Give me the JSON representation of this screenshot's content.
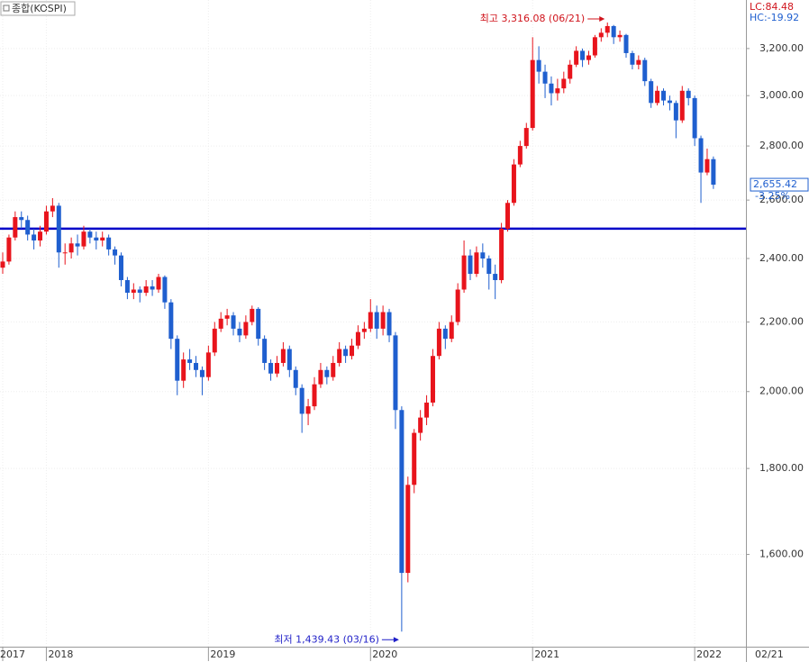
{
  "chart_data": {
    "type": "candlestick",
    "title": "종합(KOSPI)",
    "lc_label": "LC:84.48",
    "hc_label": "HC:-19.92",
    "high_note": "최고 3,316.08 (06/21)",
    "low_note": "최저 1,439.43 (03/16)",
    "last_label": "2,655.42",
    "change_label": "-3.25%",
    "x_end_label": "02/21",
    "log_scale": true,
    "grid": true,
    "up_color": "#e8141c",
    "down_color": "#1f5fcf",
    "hline": 2500,
    "hline_color": "#0000c8",
    "ylim": [
      1410,
      3420
    ],
    "yticks": [
      {
        "value": 1600,
        "label": "1,600.00"
      },
      {
        "value": 1800,
        "label": "1,800.00"
      },
      {
        "value": 2000,
        "label": "2,000.00"
      },
      {
        "value": 2200,
        "label": "2,200.00"
      },
      {
        "value": 2400,
        "label": "2,400.00"
      },
      {
        "value": 2600,
        "label": "2,600.00"
      },
      {
        "value": 2800,
        "label": "2,800.00"
      },
      {
        "value": 3000,
        "label": "3,000.00"
      },
      {
        "value": 3200,
        "label": "3,200.00"
      }
    ],
    "categories": [
      "2017",
      null,
      null,
      null,
      null,
      null,
      null,
      "2018",
      null,
      null,
      null,
      null,
      null,
      null,
      null,
      null,
      null,
      null,
      null,
      null,
      null,
      null,
      null,
      null,
      null,
      null,
      null,
      null,
      null,
      null,
      null,
      null,
      null,
      "2019",
      null,
      null,
      null,
      null,
      null,
      null,
      null,
      null,
      null,
      null,
      null,
      null,
      null,
      null,
      null,
      null,
      null,
      null,
      null,
      null,
      null,
      null,
      null,
      null,
      null,
      "2020",
      null,
      null,
      null,
      null,
      null,
      null,
      null,
      null,
      null,
      null,
      null,
      null,
      null,
      null,
      null,
      null,
      null,
      null,
      null,
      null,
      null,
      null,
      null,
      null,
      null,
      "2021",
      null,
      null,
      null,
      null,
      null,
      null,
      null,
      null,
      null,
      null,
      null,
      null,
      null,
      null,
      null,
      null,
      null,
      null,
      null,
      null,
      null,
      null,
      null,
      null,
      null,
      "2022",
      null,
      null,
      null
    ],
    "candles": [
      [
        2370,
        2420,
        2350,
        2390
      ],
      [
        2390,
        2480,
        2380,
        2470
      ],
      [
        2470,
        2560,
        2460,
        2540
      ],
      [
        2540,
        2560,
        2500,
        2530
      ],
      [
        2530,
        2545,
        2460,
        2480
      ],
      [
        2480,
        2500,
        2430,
        2460
      ],
      [
        2460,
        2510,
        2440,
        2490
      ],
      [
        2490,
        2580,
        2480,
        2560
      ],
      [
        2560,
        2607,
        2540,
        2580
      ],
      [
        2580,
        2590,
        2370,
        2420
      ],
      [
        2420,
        2450,
        2380,
        2420
      ],
      [
        2420,
        2470,
        2400,
        2450
      ],
      [
        2450,
        2480,
        2410,
        2440
      ],
      [
        2440,
        2510,
        2430,
        2490
      ],
      [
        2490,
        2500,
        2450,
        2470
      ],
      [
        2470,
        2490,
        2430,
        2460
      ],
      [
        2460,
        2490,
        2440,
        2470
      ],
      [
        2470,
        2480,
        2410,
        2430
      ],
      [
        2430,
        2440,
        2380,
        2410
      ],
      [
        2410,
        2420,
        2310,
        2330
      ],
      [
        2330,
        2340,
        2270,
        2290
      ],
      [
        2290,
        2320,
        2270,
        2300
      ],
      [
        2300,
        2310,
        2260,
        2290
      ],
      [
        2290,
        2330,
        2280,
        2310
      ],
      [
        2310,
        2330,
        2280,
        2300
      ],
      [
        2300,
        2350,
        2290,
        2340
      ],
      [
        2340,
        2345,
        2240,
        2260
      ],
      [
        2260,
        2270,
        2120,
        2150
      ],
      [
        2150,
        2160,
        1990,
        2030
      ],
      [
        2030,
        2110,
        2010,
        2090
      ],
      [
        2090,
        2120,
        2060,
        2080
      ],
      [
        2080,
        2100,
        2040,
        2060
      ],
      [
        2060,
        2070,
        1990,
        2040
      ],
      [
        2040,
        2130,
        2030,
        2110
      ],
      [
        2110,
        2200,
        2100,
        2180
      ],
      [
        2180,
        2230,
        2170,
        2210
      ],
      [
        2210,
        2240,
        2190,
        2220
      ],
      [
        2220,
        2230,
        2160,
        2180
      ],
      [
        2180,
        2200,
        2140,
        2160
      ],
      [
        2160,
        2220,
        2150,
        2200
      ],
      [
        2200,
        2250,
        2190,
        2240
      ],
      [
        2240,
        2245,
        2130,
        2150
      ],
      [
        2150,
        2160,
        2060,
        2080
      ],
      [
        2080,
        2090,
        2030,
        2050
      ],
      [
        2050,
        2100,
        2040,
        2080
      ],
      [
        2080,
        2140,
        2070,
        2120
      ],
      [
        2120,
        2130,
        2040,
        2060
      ],
      [
        2060,
        2070,
        1990,
        2010
      ],
      [
        2010,
        2020,
        1890,
        1940
      ],
      [
        1940,
        1980,
        1910,
        1960
      ],
      [
        1960,
        2040,
        1950,
        2020
      ],
      [
        2020,
        2080,
        2010,
        2060
      ],
      [
        2060,
        2070,
        2020,
        2040
      ],
      [
        2040,
        2100,
        2030,
        2080
      ],
      [
        2080,
        2140,
        2070,
        2120
      ],
      [
        2120,
        2130,
        2080,
        2100
      ],
      [
        2100,
        2150,
        2090,
        2130
      ],
      [
        2130,
        2190,
        2120,
        2170
      ],
      [
        2170,
        2200,
        2150,
        2180
      ],
      [
        2180,
        2270,
        2170,
        2230
      ],
      [
        2230,
        2250,
        2150,
        2180
      ],
      [
        2180,
        2250,
        2160,
        2230
      ],
      [
        2230,
        2240,
        2140,
        2160
      ],
      [
        2160,
        2170,
        1900,
        1950
      ],
      [
        1950,
        1960,
        1439.43,
        1560
      ],
      [
        1560,
        1780,
        1540,
        1760
      ],
      [
        1760,
        1900,
        1740,
        1890
      ],
      [
        1890,
        1950,
        1870,
        1930
      ],
      [
        1930,
        1990,
        1910,
        1970
      ],
      [
        1970,
        2120,
        1960,
        2100
      ],
      [
        2100,
        2200,
        2090,
        2180
      ],
      [
        2180,
        2190,
        2120,
        2150
      ],
      [
        2150,
        2220,
        2140,
        2200
      ],
      [
        2200,
        2320,
        2190,
        2300
      ],
      [
        2300,
        2460,
        2290,
        2410
      ],
      [
        2410,
        2430,
        2330,
        2350
      ],
      [
        2350,
        2440,
        2340,
        2420
      ],
      [
        2420,
        2450,
        2370,
        2400
      ],
      [
        2400,
        2410,
        2300,
        2350
      ],
      [
        2350,
        2380,
        2270,
        2330
      ],
      [
        2330,
        2520,
        2320,
        2500
      ],
      [
        2500,
        2600,
        2490,
        2590
      ],
      [
        2590,
        2750,
        2580,
        2730
      ],
      [
        2730,
        2820,
        2720,
        2800
      ],
      [
        2800,
        2890,
        2790,
        2870
      ],
      [
        2870,
        3250,
        2860,
        3150
      ],
      [
        3150,
        3210,
        3050,
        3100
      ],
      [
        3100,
        3130,
        2990,
        3050
      ],
      [
        3050,
        3080,
        2960,
        3010
      ],
      [
        3010,
        3070,
        2980,
        3030
      ],
      [
        3030,
        3100,
        3010,
        3070
      ],
      [
        3070,
        3150,
        3050,
        3130
      ],
      [
        3130,
        3210,
        3120,
        3190
      ],
      [
        3190,
        3200,
        3120,
        3150
      ],
      [
        3150,
        3190,
        3130,
        3170
      ],
      [
        3170,
        3260,
        3160,
        3250
      ],
      [
        3250,
        3290,
        3230,
        3270
      ],
      [
        3270,
        3316.08,
        3250,
        3300
      ],
      [
        3300,
        3305,
        3220,
        3250
      ],
      [
        3250,
        3280,
        3230,
        3260
      ],
      [
        3260,
        3265,
        3160,
        3180
      ],
      [
        3180,
        3190,
        3110,
        3130
      ],
      [
        3130,
        3170,
        3110,
        3150
      ],
      [
        3150,
        3160,
        3040,
        3060
      ],
      [
        3060,
        3070,
        2950,
        2970
      ],
      [
        2970,
        3040,
        2960,
        3020
      ],
      [
        3020,
        3030,
        2960,
        2980
      ],
      [
        2980,
        3000,
        2940,
        2970
      ],
      [
        2970,
        2980,
        2830,
        2900
      ],
      [
        2900,
        3040,
        2890,
        3020
      ],
      [
        3020,
        3030,
        2960,
        2990
      ],
      [
        2990,
        3000,
        2800,
        2830
      ],
      [
        2830,
        2840,
        2590,
        2700
      ],
      [
        2700,
        2790,
        2690,
        2750
      ],
      [
        2750,
        2760,
        2640,
        2655.42
      ]
    ]
  }
}
